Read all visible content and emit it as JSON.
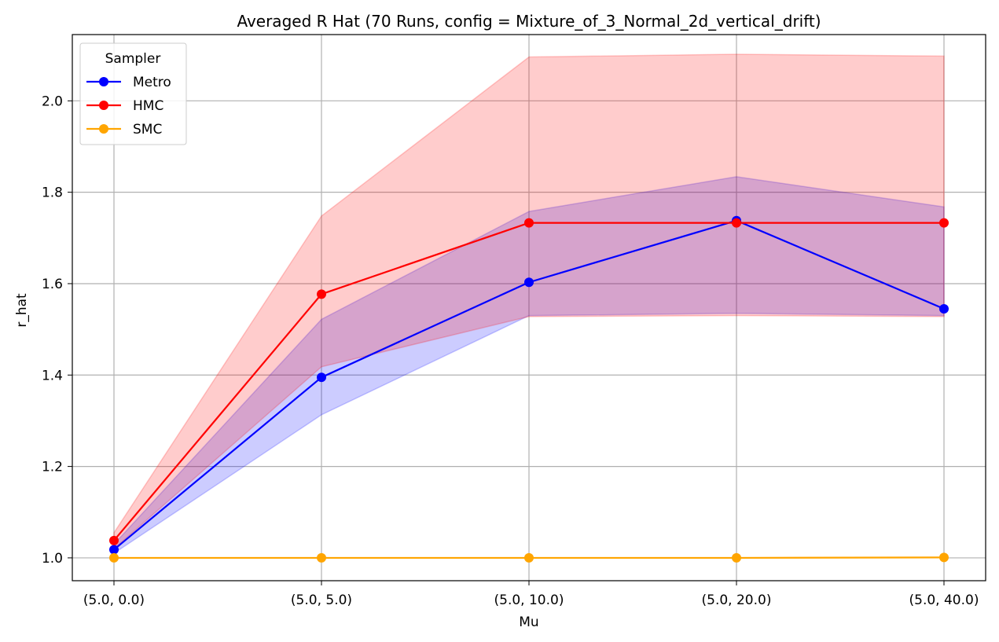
{
  "chart_data": {
    "type": "line",
    "title": "Averaged R Hat (70 Runs, config = Mixture_of_3_Normal_2d_vertical_drift)",
    "xlabel": "Mu",
    "ylabel": "r_hat",
    "categories": [
      "(5.0, 0.0)",
      "(5.0, 5.0)",
      "(5.0, 10.0)",
      "(5.0, 20.0)",
      "(5.0, 40.0)"
    ],
    "ylim": [
      0.95,
      2.145
    ],
    "yticks": [
      "1.0",
      "1.2",
      "1.4",
      "1.6",
      "1.8",
      "2.0"
    ],
    "grid": true,
    "legend": {
      "title": "Sampler",
      "position": "top-left"
    },
    "series": [
      {
        "name": "Metro",
        "color": "#0000ff",
        "band_color": "#0000ff",
        "values": [
          1.018,
          1.395,
          1.603,
          1.738,
          1.545
        ],
        "lower": [
          1.01,
          1.313,
          1.53,
          1.535,
          1.53
        ],
        "upper": [
          1.03,
          1.522,
          1.758,
          1.834,
          1.768
        ]
      },
      {
        "name": "HMC",
        "color": "#ff0000",
        "band_color": "#ff0000",
        "values": [
          1.038,
          1.577,
          1.733,
          1.733,
          1.733
        ],
        "lower": [
          1.02,
          1.418,
          1.528,
          1.53,
          1.528
        ],
        "upper": [
          1.055,
          1.748,
          2.096,
          2.102,
          2.098
        ]
      },
      {
        "name": "SMC",
        "color": "#ffa500",
        "values": [
          1.0,
          1.0,
          1.0,
          1.0,
          1.001
        ]
      }
    ]
  }
}
